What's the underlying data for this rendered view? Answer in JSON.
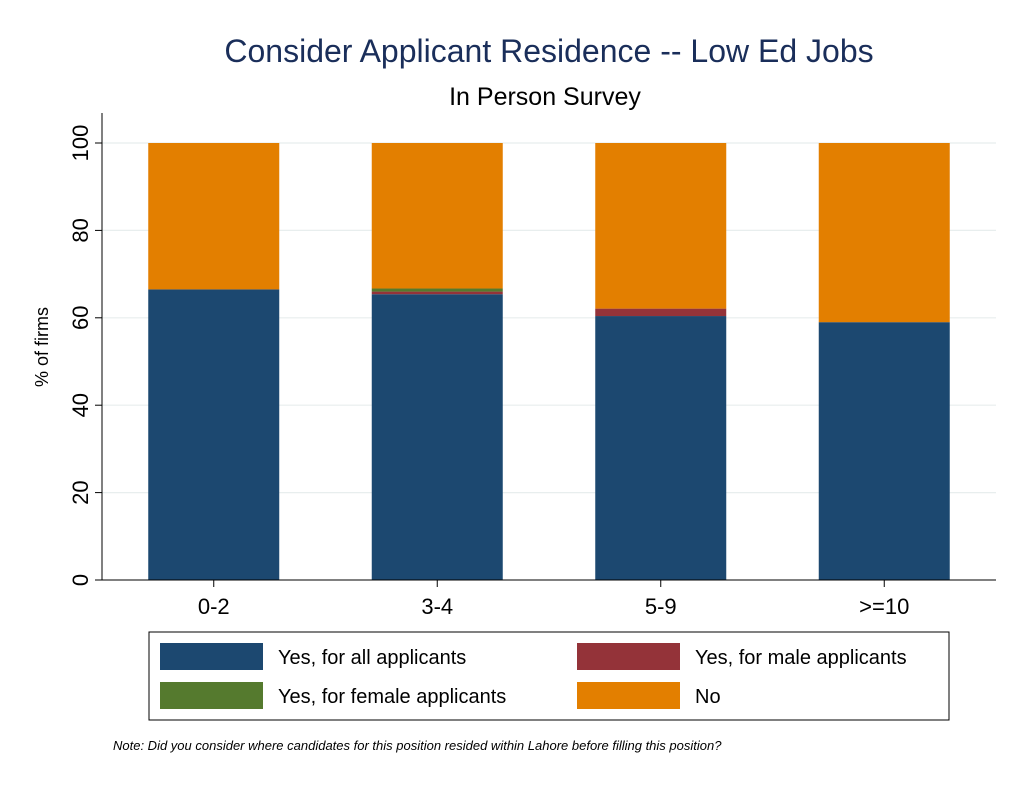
{
  "chart_data": {
    "type": "bar",
    "stacked": true,
    "title": "Consider Applicant Residence -- Low Ed Jobs",
    "subtitle": "In Person Survey",
    "xlabel": "",
    "ylabel": "% of firms",
    "ylim": [
      0,
      100
    ],
    "yticks": [
      0,
      20,
      40,
      60,
      80,
      100
    ],
    "grid": true,
    "legend_position": "bottom",
    "categories": [
      "0-2",
      "3-4",
      "5-9",
      ">=10"
    ],
    "series": [
      {
        "name": "Yes, for all applicants",
        "color": "#1c4870",
        "values": [
          66.5,
          65.4,
          60.4,
          59.0
        ]
      },
      {
        "name": "Yes, for male applicants",
        "color": "#943339",
        "values": [
          0.0,
          0.6,
          1.7,
          0.0
        ]
      },
      {
        "name": "Yes, for female applicants",
        "color": "#557a2e",
        "values": [
          0.0,
          0.7,
          0.0,
          0.0
        ]
      },
      {
        "name": "No",
        "color": "#e37f00",
        "values": [
          33.5,
          33.3,
          37.9,
          41.0
        ]
      }
    ],
    "legend_order": [
      0,
      1,
      2,
      3
    ],
    "note": "Note: Did you consider where candidates for this position resided within Lahore before filling this position?"
  }
}
